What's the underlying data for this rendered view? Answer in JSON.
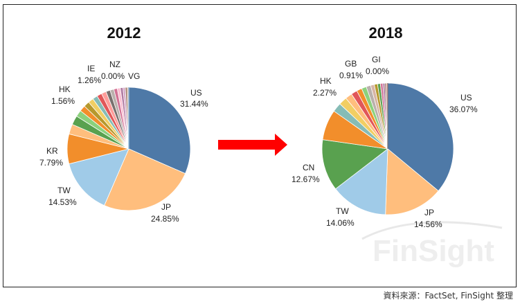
{
  "source_note": "資料來源：FactSet, FinSight 整理",
  "watermark": "FinSight",
  "chart_data": [
    {
      "type": "pie",
      "title": "2012",
      "slices": [
        {
          "label": "US",
          "value": 31.44,
          "color": "#4E79A7",
          "labeled": true
        },
        {
          "label": "JP",
          "value": 24.85,
          "color": "#FFBE7D",
          "labeled": true
        },
        {
          "label": "TW",
          "value": 14.53,
          "color": "#A0CBE8",
          "labeled": true
        },
        {
          "label": "KR",
          "value": 7.79,
          "color": "#F28E2B",
          "labeled": true
        },
        {
          "label": "",
          "value": 2.6,
          "color": "#FFBE7D",
          "labeled": false
        },
        {
          "label": "",
          "value": 2.4,
          "color": "#59A14F",
          "labeled": false
        },
        {
          "label": "",
          "value": 1.7,
          "color": "#8CD17D",
          "labeled": false
        },
        {
          "label": "HK",
          "value": 1.56,
          "color": "#F28E2B",
          "labeled": true
        },
        {
          "label": "",
          "value": 1.5,
          "color": "#B6992D",
          "labeled": false
        },
        {
          "label": "",
          "value": 1.4,
          "color": "#F1CE63",
          "labeled": false
        },
        {
          "label": "",
          "value": 1.3,
          "color": "#86BCB6",
          "labeled": false
        },
        {
          "label": "",
          "value": 1.3,
          "color": "#E15759",
          "labeled": false
        },
        {
          "label": "IE",
          "value": 1.26,
          "color": "#FF9D9A",
          "labeled": true
        },
        {
          "label": "",
          "value": 1.1,
          "color": "#79706E",
          "labeled": false
        },
        {
          "label": "",
          "value": 1.0,
          "color": "#BAB0AC",
          "labeled": false
        },
        {
          "label": "",
          "value": 0.9,
          "color": "#D37295",
          "labeled": false
        },
        {
          "label": "",
          "value": 0.8,
          "color": "#FABFD2",
          "labeled": false
        },
        {
          "label": "",
          "value": 0.7,
          "color": "#B07AA1",
          "labeled": false
        },
        {
          "label": "",
          "value": 0.6,
          "color": "#D4A6C8",
          "labeled": false
        },
        {
          "label": "",
          "value": 0.5,
          "color": "#9D7660",
          "labeled": false
        },
        {
          "label": "",
          "value": 0.4,
          "color": "#D7B5A6",
          "labeled": false
        },
        {
          "label": "NZ",
          "value": 0.0,
          "color": "#4E79A7",
          "labeled": true
        },
        {
          "label": "VG",
          "value": 0.0,
          "color": "#A0CBE8",
          "labeled": true
        }
      ],
      "labels": [
        {
          "name": "US",
          "pct": "31.44%"
        },
        {
          "name": "JP",
          "pct": "24.85%"
        },
        {
          "name": "TW",
          "pct": "14.53%"
        },
        {
          "name": "KR",
          "pct": "7.79%"
        },
        {
          "name": "HK",
          "pct": "1.56%"
        },
        {
          "name": "IE",
          "pct": "1.26%"
        },
        {
          "name": "NZ",
          "pct": "0.00%"
        },
        {
          "name": "VG",
          "pct": ""
        }
      ]
    },
    {
      "type": "pie",
      "title": "2018",
      "slices": [
        {
          "label": "US",
          "value": 36.07,
          "color": "#4E79A7",
          "labeled": true
        },
        {
          "label": "JP",
          "value": 14.56,
          "color": "#FFBE7D",
          "labeled": true
        },
        {
          "label": "TW",
          "value": 14.06,
          "color": "#A0CBE8",
          "labeled": true
        },
        {
          "label": "CN",
          "value": 12.67,
          "color": "#59A14F",
          "labeled": true
        },
        {
          "label": "",
          "value": 7.5,
          "color": "#F28E2B",
          "labeled": false
        },
        {
          "label": "HK",
          "value": 2.27,
          "color": "#86BCB6",
          "labeled": true
        },
        {
          "label": "",
          "value": 2.0,
          "color": "#F1CE63",
          "labeled": false
        },
        {
          "label": "",
          "value": 1.7,
          "color": "#FFBE7D",
          "labeled": false
        },
        {
          "label": "",
          "value": 1.5,
          "color": "#E15759",
          "labeled": false
        },
        {
          "label": "",
          "value": 1.3,
          "color": "#F28E2B",
          "labeled": false
        },
        {
          "label": "",
          "value": 1.2,
          "color": "#8CD17D",
          "labeled": false
        },
        {
          "label": "",
          "value": 1.1,
          "color": "#BAB0AC",
          "labeled": false
        },
        {
          "label": "GB",
          "value": 0.91,
          "color": "#D7B5A6",
          "labeled": true
        },
        {
          "label": "",
          "value": 0.8,
          "color": "#B6992D",
          "labeled": false
        },
        {
          "label": "",
          "value": 0.7,
          "color": "#59A14F",
          "labeled": false
        },
        {
          "label": "",
          "value": 0.6,
          "color": "#D37295",
          "labeled": false
        },
        {
          "label": "",
          "value": 0.5,
          "color": "#B07AA1",
          "labeled": false
        },
        {
          "label": "",
          "value": 0.4,
          "color": "#9D7660",
          "labeled": false
        },
        {
          "label": "",
          "value": 0.3,
          "color": "#FF9D9A",
          "labeled": false
        },
        {
          "label": "GI",
          "value": 0.0,
          "color": "#79706E",
          "labeled": true
        }
      ],
      "labels": [
        {
          "name": "US",
          "pct": "36.07%"
        },
        {
          "name": "JP",
          "pct": "14.56%"
        },
        {
          "name": "TW",
          "pct": "14.06%"
        },
        {
          "name": "CN",
          "pct": "12.67%"
        },
        {
          "name": "HK",
          "pct": "2.27%"
        },
        {
          "name": "GB",
          "pct": "0.91%"
        },
        {
          "name": "GI",
          "pct": "0.00%"
        }
      ]
    }
  ],
  "arrow_color": "#FF0000"
}
